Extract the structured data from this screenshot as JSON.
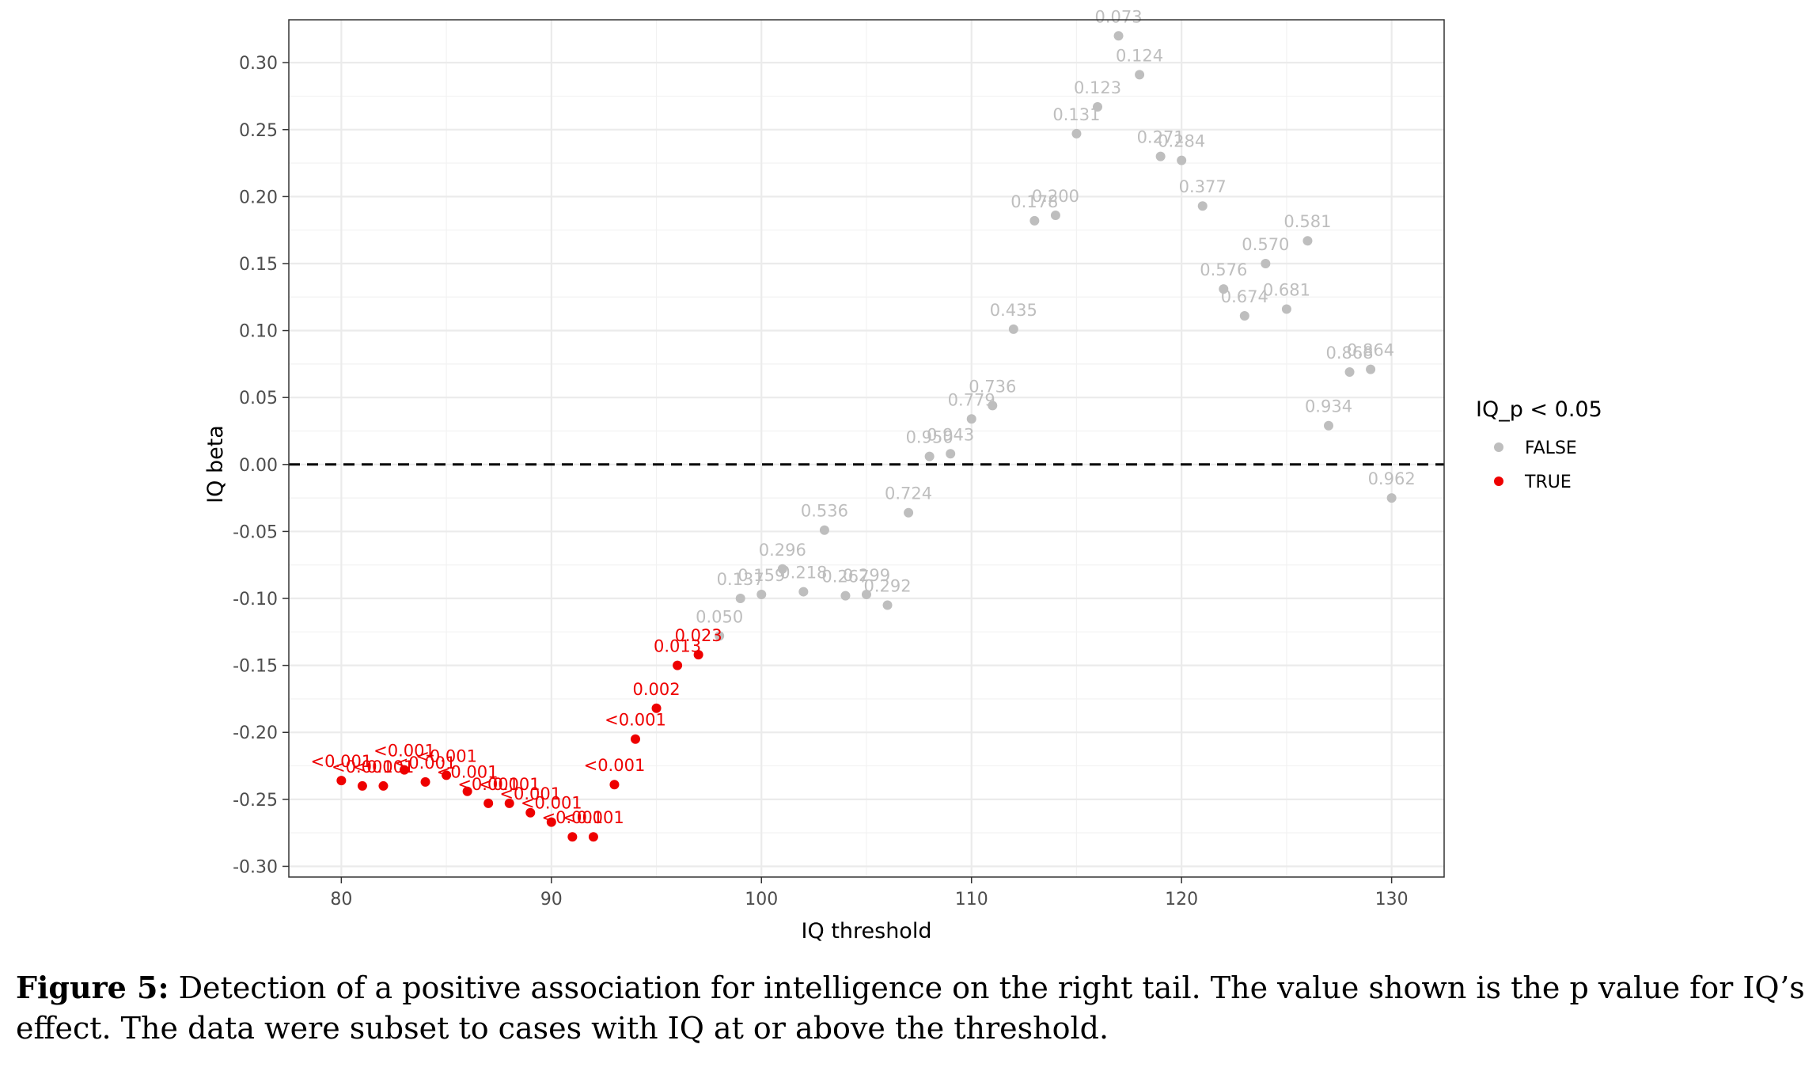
{
  "chart_data": {
    "type": "scatter",
    "title": "",
    "xlabel": "IQ threshold",
    "ylabel": "IQ beta",
    "xlim": [
      77.5,
      132.5
    ],
    "ylim": [
      -0.308,
      0.332
    ],
    "x_ticks": [
      80,
      90,
      100,
      110,
      120,
      130
    ],
    "y_ticks": [
      -0.3,
      -0.25,
      -0.2,
      -0.15,
      -0.1,
      -0.05,
      0.0,
      0.05,
      0.1,
      0.15,
      0.2,
      0.25,
      0.3
    ],
    "reference_line": {
      "y": 0,
      "style": "dashed"
    },
    "legend": {
      "title": "IQ_p < 0.05",
      "placement": "right",
      "entries": [
        {
          "label": "FALSE",
          "color": "#BEBEBE"
        },
        {
          "label": "TRUE",
          "color": "#EE0000"
        }
      ]
    },
    "points": [
      {
        "x": 80,
        "y": -0.236,
        "label": "<0.001",
        "sig": true
      },
      {
        "x": 81,
        "y": -0.24,
        "label": "<0.001",
        "sig": true
      },
      {
        "x": 82,
        "y": -0.24,
        "label": "<0.001",
        "sig": true
      },
      {
        "x": 83,
        "y": -0.228,
        "label": "<0.001",
        "sig": true
      },
      {
        "x": 84,
        "y": -0.237,
        "label": "<0.001",
        "sig": true
      },
      {
        "x": 85,
        "y": -0.232,
        "label": "<0.001",
        "sig": true
      },
      {
        "x": 86,
        "y": -0.244,
        "label": "<0.001",
        "sig": true
      },
      {
        "x": 87,
        "y": -0.253,
        "label": "<0.001",
        "sig": true
      },
      {
        "x": 88,
        "y": -0.253,
        "label": "<0.001",
        "sig": true
      },
      {
        "x": 89,
        "y": -0.26,
        "label": "<0.001",
        "sig": true
      },
      {
        "x": 90,
        "y": -0.267,
        "label": "<0.001",
        "sig": true
      },
      {
        "x": 91,
        "y": -0.278,
        "label": "<0.001",
        "sig": true
      },
      {
        "x": 92,
        "y": -0.278,
        "label": "<0.001",
        "sig": true
      },
      {
        "x": 93,
        "y": -0.239,
        "label": "<0.001",
        "sig": true
      },
      {
        "x": 94,
        "y": -0.205,
        "label": "<0.001",
        "sig": true
      },
      {
        "x": 95,
        "y": -0.182,
        "label": "0.002",
        "sig": true
      },
      {
        "x": 96,
        "y": -0.15,
        "label": "0.013",
        "sig": true
      },
      {
        "x": 97,
        "y": -0.142,
        "label": "0.023",
        "sig": true
      },
      {
        "x": 98,
        "y": -0.128,
        "label": "0.050",
        "sig": false
      },
      {
        "x": 99,
        "y": -0.1,
        "label": "0.137",
        "sig": false
      },
      {
        "x": 100,
        "y": -0.097,
        "label": "0.159",
        "sig": false
      },
      {
        "x": 101,
        "y": -0.078,
        "label": "0.296",
        "sig": false
      },
      {
        "x": 102,
        "y": -0.095,
        "label": "0.218",
        "sig": false
      },
      {
        "x": 103,
        "y": -0.049,
        "label": "0.536",
        "sig": false
      },
      {
        "x": 104,
        "y": -0.098,
        "label": "0.267",
        "sig": false
      },
      {
        "x": 105,
        "y": -0.097,
        "label": "0.299",
        "sig": false
      },
      {
        "x": 106,
        "y": -0.105,
        "label": "0.292",
        "sig": false
      },
      {
        "x": 107,
        "y": -0.036,
        "label": "0.724",
        "sig": false
      },
      {
        "x": 108,
        "y": 0.006,
        "label": "0.950",
        "sig": false
      },
      {
        "x": 109,
        "y": 0.008,
        "label": "0.943",
        "sig": false
      },
      {
        "x": 110,
        "y": 0.034,
        "label": "0.779",
        "sig": false
      },
      {
        "x": 111,
        "y": 0.044,
        "label": "0.736",
        "sig": false
      },
      {
        "x": 112,
        "y": 0.101,
        "label": "0.435",
        "sig": false
      },
      {
        "x": 113,
        "y": 0.182,
        "label": "0.178",
        "sig": false
      },
      {
        "x": 114,
        "y": 0.186,
        "label": "0.200",
        "sig": false
      },
      {
        "x": 115,
        "y": 0.247,
        "label": "0.131",
        "sig": false
      },
      {
        "x": 116,
        "y": 0.267,
        "label": "0.123",
        "sig": false
      },
      {
        "x": 117,
        "y": 0.32,
        "label": "0.073",
        "sig": false
      },
      {
        "x": 118,
        "y": 0.291,
        "label": "0.124",
        "sig": false
      },
      {
        "x": 119,
        "y": 0.23,
        "label": "0.271",
        "sig": false
      },
      {
        "x": 120,
        "y": 0.227,
        "label": "0.284",
        "sig": false
      },
      {
        "x": 121,
        "y": 0.193,
        "label": "0.377",
        "sig": false
      },
      {
        "x": 122,
        "y": 0.131,
        "label": "0.576",
        "sig": false
      },
      {
        "x": 123,
        "y": 0.111,
        "label": "0.674",
        "sig": false
      },
      {
        "x": 124,
        "y": 0.15,
        "label": "0.570",
        "sig": false
      },
      {
        "x": 125,
        "y": 0.116,
        "label": "0.681",
        "sig": false
      },
      {
        "x": 126,
        "y": 0.167,
        "label": "0.581",
        "sig": false
      },
      {
        "x": 127,
        "y": 0.029,
        "label": "0.934",
        "sig": false
      },
      {
        "x": 128,
        "y": 0.069,
        "label": "0.868",
        "sig": false
      },
      {
        "x": 129,
        "y": 0.071,
        "label": "0.864",
        "sig": false
      },
      {
        "x": 130,
        "y": -0.025,
        "label": "0.962",
        "sig": false
      }
    ]
  },
  "caption": {
    "label": "Figure 5:",
    "text": " Detection of a positive association for intelligence on the right tail. The value shown is the p value for IQ’s effect. The data were subset to cases with IQ at or above the threshold."
  }
}
